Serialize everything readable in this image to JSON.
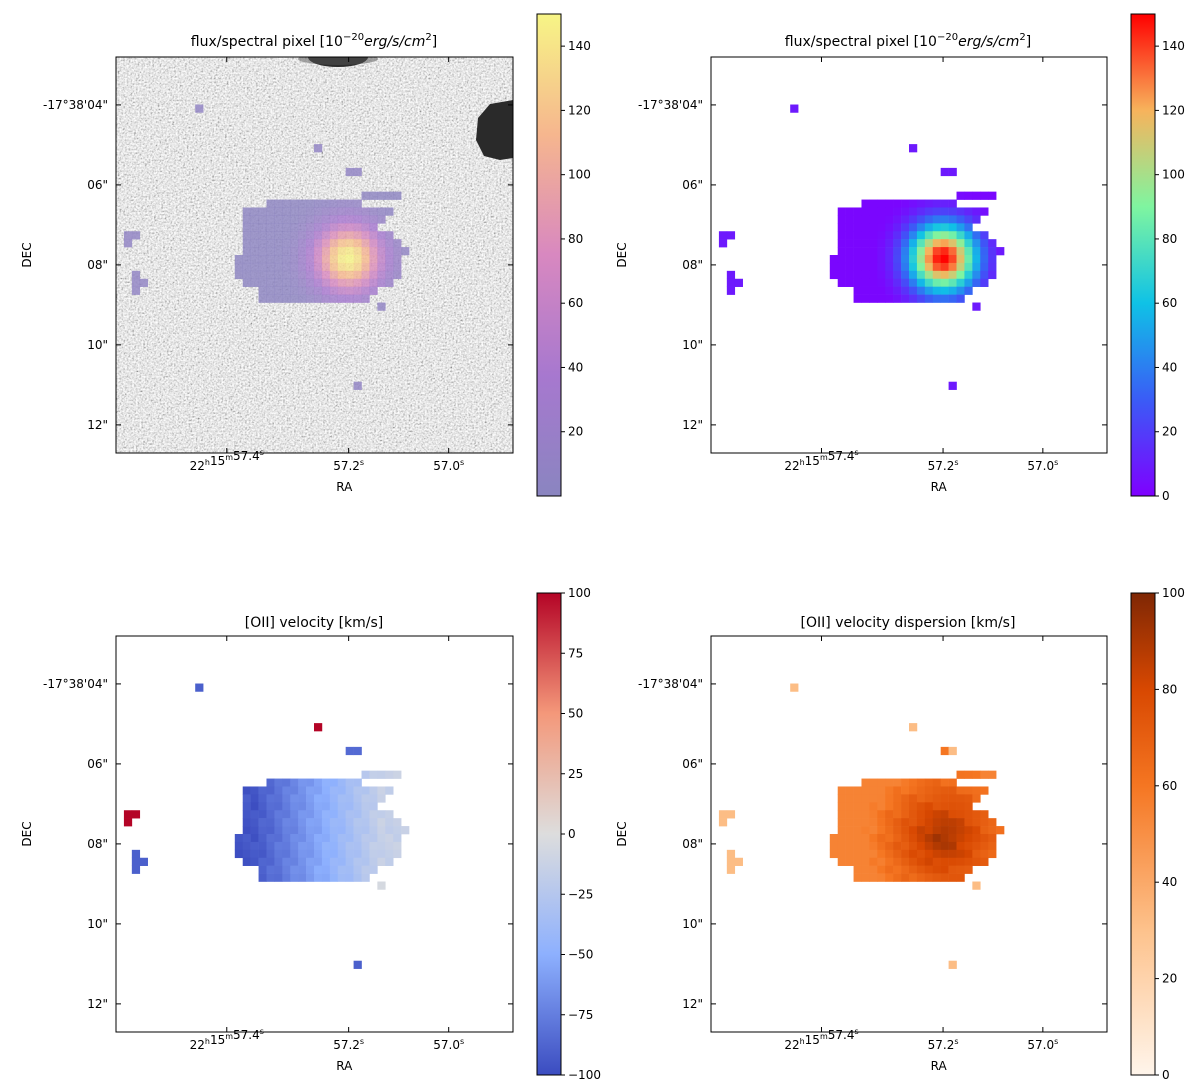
{
  "chart_data": [
    {
      "type": "heatmap",
      "id": "p1",
      "title": "flux/spectral pixel [10^{-20}erg/s/cm^2]",
      "title_base": "flux/spectral pixel [10",
      "title_exp": "−20",
      "title_unit": "erg/s/cm",
      "title_unit_exp": "2",
      "title_close": "]",
      "xlabel": "RA",
      "ylabel": "DEC",
      "xticks": [
        "22h15m57.4s",
        "57.2s",
        "57.0s"
      ],
      "yticks": [
        "-17°38'04\"",
        "06\"",
        "08\"",
        "10\"",
        "12\""
      ],
      "background": "grayscale noise image with dark sources at top and right edges",
      "colormap": "plasma (semi-transparent overlay)",
      "colorbar": {
        "min": 0,
        "max": 150,
        "ticks": [
          20,
          40,
          60,
          80,
          100,
          120,
          140
        ]
      }
    },
    {
      "type": "heatmap",
      "id": "p2",
      "title": "flux/spectral pixel [10^{-20}erg/s/cm^2]",
      "title_base": "flux/spectral pixel [10",
      "title_exp": "−20",
      "title_unit": "erg/s/cm",
      "title_unit_exp": "2",
      "title_close": "]",
      "xlabel": "RA",
      "ylabel": "DEC",
      "xticks": [
        "22h15m57.4s",
        "57.2s",
        "57.0s"
      ],
      "yticks": [
        "-17°38'04\"",
        "06\"",
        "08\"",
        "10\"",
        "12\""
      ],
      "colormap": "rainbow",
      "colorbar": {
        "min": 0,
        "max": 150,
        "ticks": [
          0,
          20,
          40,
          60,
          80,
          100,
          120,
          140
        ]
      }
    },
    {
      "type": "heatmap",
      "id": "p3",
      "title": "[OII] velocity [km/s]",
      "xlabel": "RA",
      "ylabel": "DEC",
      "xticks": [
        "22h15m57.4s",
        "57.2s",
        "57.0s"
      ],
      "yticks": [
        "-17°38'04\"",
        "06\"",
        "08\"",
        "10\"",
        "12\""
      ],
      "colormap": "coolwarm",
      "colorbar": {
        "min": -100,
        "max": 100,
        "ticks": [
          -100,
          -75,
          -50,
          -25,
          0,
          25,
          50,
          75,
          100
        ]
      }
    },
    {
      "type": "heatmap",
      "id": "p4",
      "title": "[OII] velocity dispersion [km/s]",
      "xlabel": "RA",
      "ylabel": "DEC",
      "xticks": [
        "22h15m57.4s",
        "57.2s",
        "57.0s"
      ],
      "yticks": [
        "-17°38'04\"",
        "06\"",
        "08\"",
        "10\"",
        "12\""
      ],
      "colormap": "oranges",
      "colorbar": {
        "min": 0,
        "max": 100,
        "ticks": [
          0,
          20,
          40,
          60,
          80,
          100
        ]
      }
    }
  ]
}
